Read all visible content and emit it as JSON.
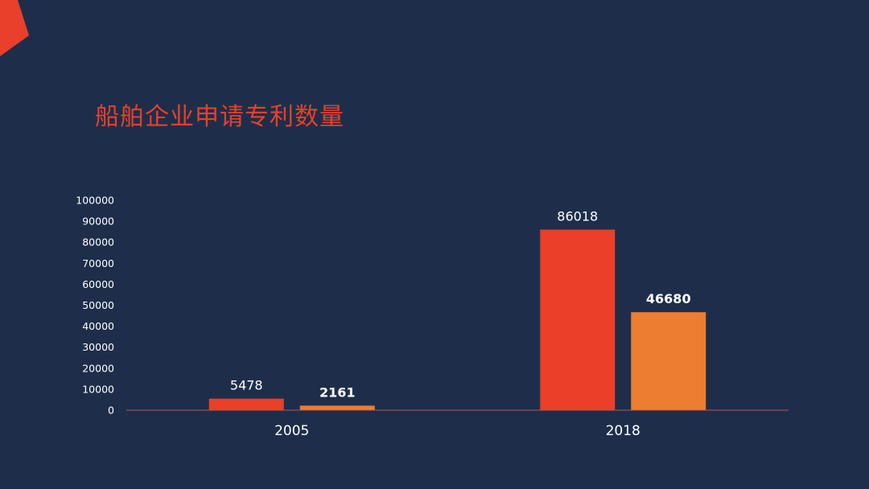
{
  "title": "船舶企业申请专利数量",
  "colors": {
    "background": "#1e2e4a",
    "accent": "#e8402a",
    "series_1": "#eb3f27",
    "series_2": "#ed7d31",
    "axis_line": "#c0504d"
  },
  "chart_data": {
    "type": "bar",
    "title": "船舶企业申请专利数量",
    "categories": [
      "2005",
      "2018"
    ],
    "series": [
      {
        "values": [
          5478,
          86018
        ],
        "color": "#eb3f27"
      },
      {
        "values": [
          2161,
          46680
        ],
        "color": "#ed7d31"
      }
    ],
    "ylim": [
      0,
      100000
    ],
    "y_ticks": [
      0,
      10000,
      20000,
      30000,
      40000,
      50000,
      60000,
      70000,
      80000,
      90000,
      100000
    ],
    "grid": false,
    "legend": "none"
  }
}
